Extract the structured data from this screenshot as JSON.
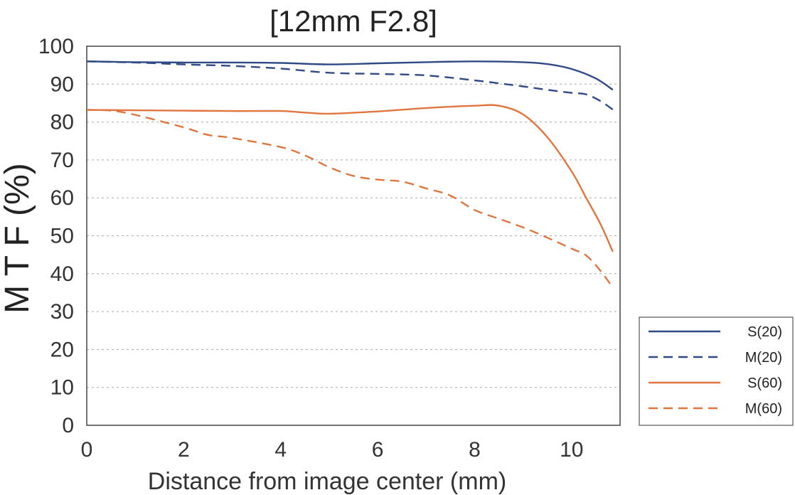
{
  "chart_data": {
    "type": "line",
    "title": "[12mm F2.8]",
    "xlabel": "Distance from image center (mm)",
    "ylabel": "M T F (%)",
    "xlim": [
      0,
      11.0
    ],
    "ylim": [
      0,
      100
    ],
    "xticks": [
      "0",
      "2",
      "4",
      "6",
      "8",
      "10"
    ],
    "yticks": [
      "0",
      "10",
      "20",
      "30",
      "40",
      "50",
      "60",
      "70",
      "80",
      "90",
      "100"
    ],
    "grid": true,
    "legend_position": "right",
    "series": [
      {
        "name": "S(20)",
        "color": "#2f4a85",
        "dash": "solid",
        "x": [
          0,
          1,
          2,
          3,
          4,
          5,
          6,
          7,
          8,
          9,
          9.5,
          10,
          10.5,
          10.85
        ],
        "y": [
          96,
          95.8,
          95.7,
          95.7,
          95.6,
          95.2,
          95.5,
          95.8,
          96,
          95.8,
          95.3,
          94,
          91.5,
          88.5
        ]
      },
      {
        "name": "M(20)",
        "color": "#2f4a85",
        "dash": "dashed",
        "x": [
          0,
          1,
          2,
          3,
          4,
          5,
          6,
          7,
          8,
          9,
          9.5,
          10,
          10.3,
          10.6,
          10.85
        ],
        "y": [
          96,
          95.7,
          95.2,
          94.8,
          94.1,
          93,
          92.7,
          92.3,
          91,
          89.4,
          88.5,
          87.7,
          87.3,
          85.5,
          83.3
        ]
      },
      {
        "name": "S(60)",
        "color": "#e07540",
        "dash": "solid",
        "x": [
          0,
          1,
          2,
          3,
          4,
          4.5,
          5,
          6,
          7,
          8,
          8.5,
          9,
          9.5,
          10,
          10.3,
          10.6,
          10.85
        ],
        "y": [
          83.2,
          83.1,
          83,
          82.9,
          82.9,
          82.5,
          82.2,
          82.8,
          83.7,
          84.3,
          84.3,
          82,
          76,
          67,
          60,
          53,
          45.8
        ]
      },
      {
        "name": "M(60)",
        "color": "#e07540",
        "dash": "dashed",
        "x": [
          0,
          0.5,
          1,
          2,
          2.5,
          3,
          4,
          4.5,
          5,
          5.5,
          6,
          6.5,
          7,
          7.5,
          8,
          8.5,
          9,
          9.5,
          10,
          10.3,
          10.6,
          10.85
        ],
        "y": [
          83.2,
          83,
          81.9,
          78.6,
          76.6,
          75.8,
          73.4,
          71.2,
          68.1,
          65.8,
          64.8,
          64.3,
          62.5,
          60.6,
          56.8,
          54.5,
          52.2,
          49.5,
          46.6,
          44.8,
          40.7,
          36.3
        ]
      }
    ]
  }
}
